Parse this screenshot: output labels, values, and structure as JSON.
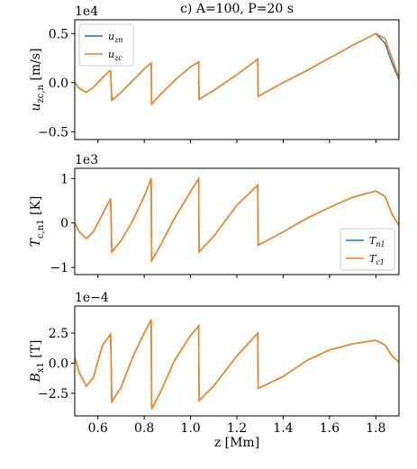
{
  "chart_data": [
    {
      "type": "line",
      "title": "c) A=100, P=20 s",
      "offset_text": "1e4",
      "ylabel": {
        "main": "u",
        "sub": "zc,n",
        "unit": " [m/s]"
      },
      "x": [
        0.5,
        0.52,
        0.55,
        0.58,
        0.62,
        0.65,
        0.655,
        0.66,
        0.7,
        0.75,
        0.8,
        0.83,
        0.832,
        0.87,
        0.93,
        1.0,
        1.035,
        1.037,
        1.1,
        1.2,
        1.29,
        1.292,
        1.4,
        1.5,
        1.6,
        1.7,
        1.8,
        1.84,
        1.87,
        1.9
      ],
      "series": [
        {
          "name": "u",
          "sub": "zn",
          "color": "#1f77b4",
          "values": [
            0.0,
            -0.06,
            -0.1,
            -0.05,
            0.05,
            0.12,
            0.12,
            -0.18,
            -0.1,
            0.02,
            0.14,
            0.2,
            -0.22,
            -0.12,
            0.02,
            0.16,
            0.21,
            -0.17,
            -0.08,
            0.08,
            0.24,
            -0.14,
            0.0,
            0.12,
            0.25,
            0.38,
            0.5,
            0.4,
            0.2,
            0.03
          ]
        },
        {
          "name": "u",
          "sub": "zc",
          "color": "#ff7f0e",
          "values": [
            0.0,
            -0.06,
            -0.1,
            -0.05,
            0.05,
            0.12,
            0.12,
            -0.18,
            -0.1,
            0.02,
            0.14,
            0.2,
            -0.22,
            -0.12,
            0.02,
            0.16,
            0.21,
            -0.17,
            -0.08,
            0.08,
            0.24,
            -0.14,
            0.0,
            0.12,
            0.25,
            0.38,
            0.5,
            0.45,
            0.25,
            0.05
          ]
        }
      ],
      "xlim": [
        0.5,
        1.9
      ],
      "xticks": [
        0.6,
        0.8,
        {
          "value": 1.0,
          "label": "1.0"
        },
        1.2,
        1.4,
        1.6,
        1.8
      ],
      "show_xticklabels": false,
      "ylim": [
        -0.58,
        0.64
      ],
      "yticks": [
        {
          "value": -0.5,
          "label": "−0.5"
        },
        {
          "value": 0,
          "label": "0.0"
        },
        0.5
      ],
      "legend": "upper left"
    },
    {
      "type": "line",
      "offset_text": "1e3",
      "ylabel": {
        "main": "T",
        "sub": "c,n1",
        "unit": " [K]"
      },
      "x": [
        0.5,
        0.52,
        0.55,
        0.58,
        0.62,
        0.655,
        0.66,
        0.7,
        0.75,
        0.8,
        0.83,
        0.832,
        0.87,
        0.93,
        1.0,
        1.035,
        1.037,
        1.1,
        1.2,
        1.29,
        1.292,
        1.4,
        1.5,
        1.6,
        1.7,
        1.8,
        1.84,
        1.87,
        1.9
      ],
      "series": [
        {
          "name": "T",
          "sub": "n1",
          "color": "#1f77b4",
          "values": [
            0.0,
            -0.2,
            -0.35,
            -0.2,
            0.2,
            0.55,
            -0.65,
            -0.4,
            0.05,
            0.6,
            1.0,
            -0.85,
            -0.5,
            0.1,
            0.7,
            1.0,
            -0.65,
            -0.3,
            0.4,
            0.85,
            -0.5,
            -0.2,
            0.1,
            0.35,
            0.58,
            0.72,
            0.6,
            0.2,
            -0.05
          ]
        },
        {
          "name": "T",
          "sub": "c1",
          "color": "#ff7f0e",
          "values": [
            0.0,
            -0.2,
            -0.35,
            -0.2,
            0.2,
            0.55,
            -0.65,
            -0.4,
            0.05,
            0.6,
            1.0,
            -0.85,
            -0.5,
            0.1,
            0.7,
            1.0,
            -0.65,
            -0.3,
            0.4,
            0.85,
            -0.5,
            -0.2,
            0.1,
            0.35,
            0.58,
            0.72,
            0.6,
            0.2,
            -0.05
          ]
        }
      ],
      "xlim": [
        0.5,
        1.9
      ],
      "xticks": [
        0.6,
        0.8,
        {
          "value": 1.0,
          "label": "1.0"
        },
        1.2,
        1.4,
        1.6,
        1.8
      ],
      "show_xticklabels": false,
      "ylim": [
        -1.16,
        1.23
      ],
      "yticks": [
        {
          "value": -1,
          "label": "−1"
        },
        0,
        1
      ],
      "legend": "lower right"
    },
    {
      "type": "line",
      "offset_text": "1e−4",
      "ylabel": {
        "main": "B",
        "sub": "x1",
        "unit": " [T]"
      },
      "xlabel": "z [Mm]",
      "x": [
        0.5,
        0.52,
        0.55,
        0.58,
        0.62,
        0.655,
        0.66,
        0.7,
        0.75,
        0.8,
        0.83,
        0.832,
        0.87,
        0.93,
        1.0,
        1.035,
        1.037,
        1.1,
        1.2,
        1.29,
        1.292,
        1.4,
        1.5,
        1.6,
        1.7,
        1.8,
        1.84,
        1.87,
        1.9
      ],
      "series": [
        {
          "color": "#1f77b4",
          "values": [
            0.5,
            -0.8,
            -1.9,
            -1.2,
            1.5,
            2.4,
            -3.2,
            -2.0,
            0.5,
            2.5,
            3.6,
            -3.8,
            -2.4,
            0.2,
            2.3,
            3.1,
            -3.1,
            -1.9,
            0.6,
            2.5,
            -2.1,
            -1.1,
            0.2,
            1.1,
            1.6,
            1.9,
            1.5,
            0.6,
            0.1
          ]
        },
        {
          "color": "#ff7f0e",
          "values": [
            0.5,
            -0.8,
            -1.9,
            -1.2,
            1.5,
            2.4,
            -3.2,
            -2.0,
            0.5,
            2.5,
            3.6,
            -3.8,
            -2.4,
            0.2,
            2.3,
            3.1,
            -3.1,
            -1.9,
            0.6,
            2.5,
            -2.1,
            -1.1,
            0.2,
            1.1,
            1.6,
            1.9,
            1.5,
            0.6,
            0.1
          ]
        }
      ],
      "xlim": [
        0.5,
        1.9
      ],
      "xticks": [
        0.6,
        0.8,
        {
          "value": 1.0,
          "label": "1.0"
        },
        1.2,
        1.4,
        1.6,
        1.8
      ],
      "show_xticklabels": true,
      "ylim": [
        -4.37,
        4.74
      ],
      "yticks": [
        {
          "value": -2.5,
          "label": "−2.5"
        },
        {
          "value": 0,
          "label": "0.0"
        },
        2.5
      ]
    }
  ]
}
